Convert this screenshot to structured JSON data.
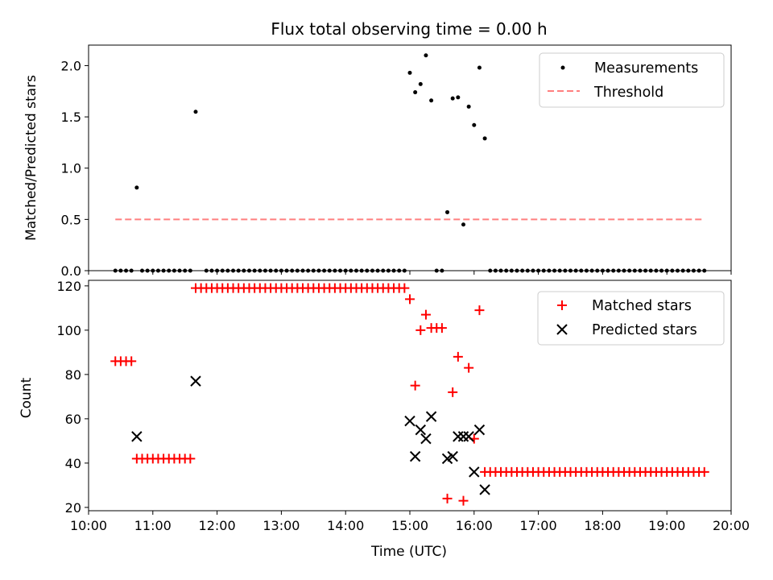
{
  "title": "Flux total observing time = 0.00 h",
  "colors": {
    "measurement": "#000000",
    "threshold": "#ff7f7f",
    "matched": "#ff0000",
    "predicted": "#000000",
    "frame": "#000000",
    "legend_border": "#cccccc"
  },
  "chart_data": [
    {
      "type": "scatter",
      "ylabel": "Matched/Predicted stars",
      "xlabel": "",
      "ylim": [
        0,
        2.2
      ],
      "xlim": [
        "10:00",
        "20:00"
      ],
      "yticks": [
        "0.0",
        "0.5",
        "1.0",
        "1.5",
        "2.0"
      ],
      "legend": {
        "placement": "top-right",
        "entries": [
          "Measurements",
          "Threshold"
        ]
      },
      "threshold": {
        "name": "Threshold",
        "value": 0.5,
        "x_start": "10:25",
        "x_end": "19:35",
        "style": "dashed"
      },
      "series": [
        {
          "name": "Measurements",
          "points": [
            [
              "10:25",
              0
            ],
            [
              "10:30",
              0
            ],
            [
              "10:35",
              0
            ],
            [
              "10:40",
              0
            ],
            [
              "10:45",
              0.81
            ],
            [
              "10:50",
              0
            ],
            [
              "10:55",
              0
            ],
            [
              "11:00",
              0
            ],
            [
              "11:05",
              0
            ],
            [
              "11:10",
              0
            ],
            [
              "11:15",
              0
            ],
            [
              "11:20",
              0
            ],
            [
              "11:25",
              0
            ],
            [
              "11:30",
              0
            ],
            [
              "11:35",
              0
            ],
            [
              "11:40",
              1.55
            ],
            [
              "11:50",
              0
            ],
            [
              "11:55",
              0
            ],
            [
              "12:00",
              0
            ],
            [
              "12:05",
              0
            ],
            [
              "12:10",
              0
            ],
            [
              "12:15",
              0
            ],
            [
              "12:20",
              0
            ],
            [
              "12:25",
              0
            ],
            [
              "12:30",
              0
            ],
            [
              "12:35",
              0
            ],
            [
              "12:40",
              0
            ],
            [
              "12:45",
              0
            ],
            [
              "12:50",
              0
            ],
            [
              "12:55",
              0
            ],
            [
              "13:00",
              0
            ],
            [
              "13:05",
              0
            ],
            [
              "13:10",
              0
            ],
            [
              "13:15",
              0
            ],
            [
              "13:20",
              0
            ],
            [
              "13:25",
              0
            ],
            [
              "13:30",
              0
            ],
            [
              "13:35",
              0
            ],
            [
              "13:40",
              0
            ],
            [
              "13:45",
              0
            ],
            [
              "13:50",
              0
            ],
            [
              "13:55",
              0
            ],
            [
              "14:00",
              0
            ],
            [
              "14:05",
              0
            ],
            [
              "14:10",
              0
            ],
            [
              "14:15",
              0
            ],
            [
              "14:20",
              0
            ],
            [
              "14:25",
              0
            ],
            [
              "14:30",
              0
            ],
            [
              "14:35",
              0
            ],
            [
              "14:40",
              0
            ],
            [
              "14:45",
              0
            ],
            [
              "14:50",
              0
            ],
            [
              "14:55",
              0
            ],
            [
              "15:00",
              1.93
            ],
            [
              "15:05",
              1.74
            ],
            [
              "15:10",
              1.82
            ],
            [
              "15:15",
              2.1
            ],
            [
              "15:20",
              1.66
            ],
            [
              "15:25",
              0
            ],
            [
              "15:30",
              0
            ],
            [
              "15:35",
              0.57
            ],
            [
              "15:40",
              1.68
            ],
            [
              "15:45",
              1.69
            ],
            [
              "15:50",
              0.45
            ],
            [
              "15:55",
              1.6
            ],
            [
              "16:00",
              1.42
            ],
            [
              "16:05",
              1.98
            ],
            [
              "16:10",
              1.29
            ],
            [
              "16:15",
              0
            ],
            [
              "16:20",
              0
            ],
            [
              "16:25",
              0
            ],
            [
              "16:30",
              0
            ],
            [
              "16:35",
              0
            ],
            [
              "16:40",
              0
            ],
            [
              "16:45",
              0
            ],
            [
              "16:50",
              0
            ],
            [
              "16:55",
              0
            ],
            [
              "17:00",
              0
            ],
            [
              "17:05",
              0
            ],
            [
              "17:10",
              0
            ],
            [
              "17:15",
              0
            ],
            [
              "17:20",
              0
            ],
            [
              "17:25",
              0
            ],
            [
              "17:30",
              0
            ],
            [
              "17:35",
              0
            ],
            [
              "17:40",
              0
            ],
            [
              "17:45",
              0
            ],
            [
              "17:50",
              0
            ],
            [
              "17:55",
              0
            ],
            [
              "18:00",
              0
            ],
            [
              "18:05",
              0
            ],
            [
              "18:10",
              0
            ],
            [
              "18:15",
              0
            ],
            [
              "18:20",
              0
            ],
            [
              "18:25",
              0
            ],
            [
              "18:30",
              0
            ],
            [
              "18:35",
              0
            ],
            [
              "18:40",
              0
            ],
            [
              "18:45",
              0
            ],
            [
              "18:50",
              0
            ],
            [
              "18:55",
              0
            ],
            [
              "19:00",
              0
            ],
            [
              "19:05",
              0
            ],
            [
              "19:10",
              0
            ],
            [
              "19:15",
              0
            ],
            [
              "19:20",
              0
            ],
            [
              "19:25",
              0
            ],
            [
              "19:30",
              0
            ],
            [
              "19:35",
              0
            ]
          ]
        }
      ]
    },
    {
      "type": "scatter",
      "ylabel": "Count",
      "xlabel": "Time (UTC)",
      "ylim": [
        18.5,
        122.5
      ],
      "xlim": [
        "10:00",
        "20:00"
      ],
      "yticks": [
        "20",
        "40",
        "60",
        "80",
        "100",
        "120"
      ],
      "xticks": [
        "10:00",
        "11:00",
        "12:00",
        "13:00",
        "14:00",
        "15:00",
        "16:00",
        "17:00",
        "18:00",
        "19:00",
        "20:00"
      ],
      "legend": {
        "placement": "top-right",
        "entries": [
          "Matched stars",
          "Predicted stars"
        ]
      },
      "series": [
        {
          "name": "Matched stars",
          "marker": "plus",
          "points": [
            [
              "10:25",
              86
            ],
            [
              "10:30",
              86
            ],
            [
              "10:35",
              86
            ],
            [
              "10:40",
              86
            ],
            [
              "10:45",
              42
            ],
            [
              "10:50",
              42
            ],
            [
              "10:55",
              42
            ],
            [
              "11:00",
              42
            ],
            [
              "11:05",
              42
            ],
            [
              "11:10",
              42
            ],
            [
              "11:15",
              42
            ],
            [
              "11:20",
              42
            ],
            [
              "11:25",
              42
            ],
            [
              "11:30",
              42
            ],
            [
              "11:35",
              42
            ],
            [
              "11:40",
              119
            ],
            [
              "11:45",
              119
            ],
            [
              "11:50",
              119
            ],
            [
              "11:55",
              119
            ],
            [
              "12:00",
              119
            ],
            [
              "12:05",
              119
            ],
            [
              "12:10",
              119
            ],
            [
              "12:15",
              119
            ],
            [
              "12:20",
              119
            ],
            [
              "12:25",
              119
            ],
            [
              "12:30",
              119
            ],
            [
              "12:35",
              119
            ],
            [
              "12:40",
              119
            ],
            [
              "12:45",
              119
            ],
            [
              "12:50",
              119
            ],
            [
              "12:55",
              119
            ],
            [
              "13:00",
              119
            ],
            [
              "13:05",
              119
            ],
            [
              "13:10",
              119
            ],
            [
              "13:15",
              119
            ],
            [
              "13:20",
              119
            ],
            [
              "13:25",
              119
            ],
            [
              "13:30",
              119
            ],
            [
              "13:35",
              119
            ],
            [
              "13:40",
              119
            ],
            [
              "13:45",
              119
            ],
            [
              "13:50",
              119
            ],
            [
              "13:55",
              119
            ],
            [
              "14:00",
              119
            ],
            [
              "14:05",
              119
            ],
            [
              "14:10",
              119
            ],
            [
              "14:15",
              119
            ],
            [
              "14:20",
              119
            ],
            [
              "14:25",
              119
            ],
            [
              "14:30",
              119
            ],
            [
              "14:35",
              119
            ],
            [
              "14:40",
              119
            ],
            [
              "14:45",
              119
            ],
            [
              "14:50",
              119
            ],
            [
              "14:55",
              119
            ],
            [
              "15:00",
              114
            ],
            [
              "15:05",
              75
            ],
            [
              "15:10",
              100
            ],
            [
              "15:15",
              107
            ],
            [
              "15:20",
              101
            ],
            [
              "15:25",
              101
            ],
            [
              "15:30",
              101
            ],
            [
              "15:35",
              24
            ],
            [
              "15:40",
              72
            ],
            [
              "15:45",
              88
            ],
            [
              "15:50",
              23
            ],
            [
              "15:55",
              83
            ],
            [
              "16:00",
              51
            ],
            [
              "16:05",
              109
            ],
            [
              "16:10",
              36
            ],
            [
              "16:15",
              36
            ],
            [
              "16:20",
              36
            ],
            [
              "16:25",
              36
            ],
            [
              "16:30",
              36
            ],
            [
              "16:35",
              36
            ],
            [
              "16:40",
              36
            ],
            [
              "16:45",
              36
            ],
            [
              "16:50",
              36
            ],
            [
              "16:55",
              36
            ],
            [
              "17:00",
              36
            ],
            [
              "17:05",
              36
            ],
            [
              "17:10",
              36
            ],
            [
              "17:15",
              36
            ],
            [
              "17:20",
              36
            ],
            [
              "17:25",
              36
            ],
            [
              "17:30",
              36
            ],
            [
              "17:35",
              36
            ],
            [
              "17:40",
              36
            ],
            [
              "17:45",
              36
            ],
            [
              "17:50",
              36
            ],
            [
              "17:55",
              36
            ],
            [
              "18:00",
              36
            ],
            [
              "18:05",
              36
            ],
            [
              "18:10",
              36
            ],
            [
              "18:15",
              36
            ],
            [
              "18:20",
              36
            ],
            [
              "18:25",
              36
            ],
            [
              "18:30",
              36
            ],
            [
              "18:35",
              36
            ],
            [
              "18:40",
              36
            ],
            [
              "18:45",
              36
            ],
            [
              "18:50",
              36
            ],
            [
              "18:55",
              36
            ],
            [
              "19:00",
              36
            ],
            [
              "19:05",
              36
            ],
            [
              "19:10",
              36
            ],
            [
              "19:15",
              36
            ],
            [
              "19:20",
              36
            ],
            [
              "19:25",
              36
            ],
            [
              "19:30",
              36
            ],
            [
              "19:35",
              36
            ]
          ]
        },
        {
          "name": "Predicted stars",
          "marker": "x",
          "points": [
            [
              "10:45",
              52
            ],
            [
              "11:40",
              77
            ],
            [
              "15:00",
              59
            ],
            [
              "15:05",
              43
            ],
            [
              "15:10",
              55
            ],
            [
              "15:15",
              51
            ],
            [
              "15:20",
              61
            ],
            [
              "15:35",
              42
            ],
            [
              "15:40",
              43
            ],
            [
              "15:45",
              52
            ],
            [
              "15:50",
              52
            ],
            [
              "15:55",
              52
            ],
            [
              "16:00",
              36
            ],
            [
              "16:05",
              55
            ],
            [
              "16:10",
              28
            ]
          ]
        }
      ]
    }
  ]
}
